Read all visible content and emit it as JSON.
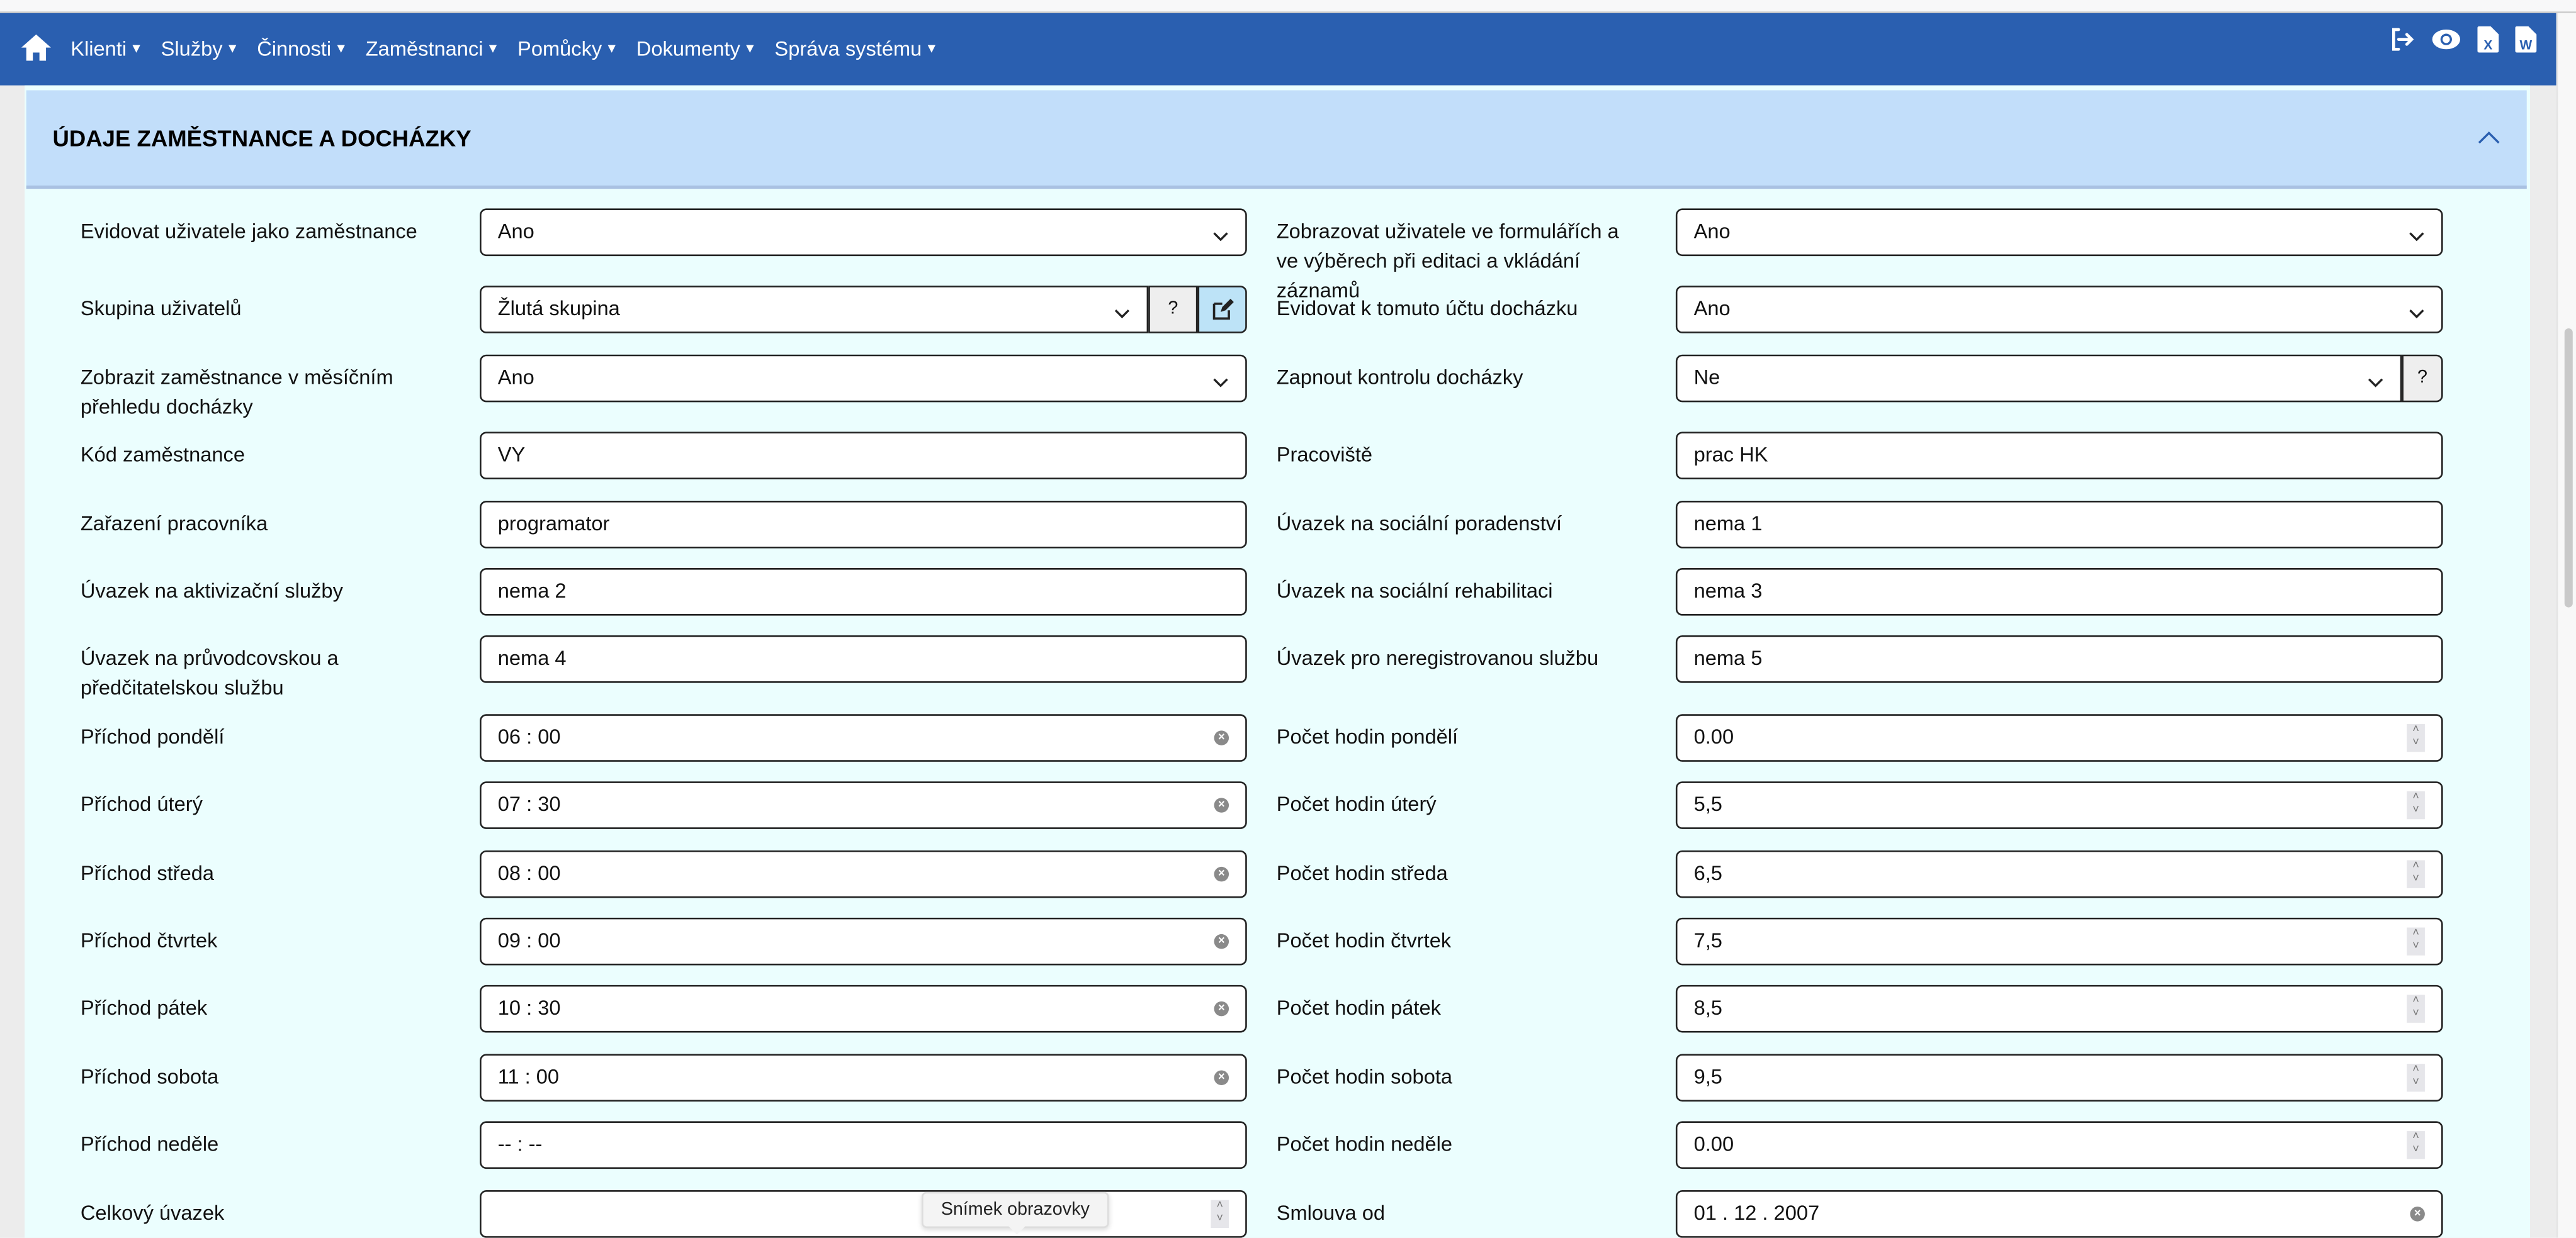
{
  "nav": {
    "items": [
      "Klienti",
      "Služby",
      "Činnosti",
      "Zaměstnanci",
      "Pomůcky",
      "Dokumenty",
      "Správa systému"
    ],
    "icons": [
      "home-icon",
      "logout-icon",
      "eye-icon",
      "excel-file-icon",
      "word-file-icon"
    ],
    "color": "#2a5fb0"
  },
  "section": {
    "title": "ÚDAJE ZAMĚSTNANCE A DOCHÁZKY",
    "header_color": "#c2defa",
    "body_color": "#ebfefe"
  },
  "rows": [
    {
      "left": {
        "label": "Evidovat uživatele jako zaměstnance",
        "type": "select",
        "value": "Ano"
      },
      "right": {
        "label": "Zobrazovat uživatele ve formulářích a ve výběrech při editaci a vkládání záznamů",
        "type": "select",
        "value": "Ano"
      }
    },
    {
      "left": {
        "label": "Skupina uživatelů",
        "type": "select",
        "value": "Žlutá skupina",
        "help": "?",
        "edit": true
      },
      "right": {
        "label": "Evidovat k tomuto účtu docházku",
        "type": "select",
        "value": "Ano"
      }
    },
    {
      "left": {
        "label": "Zobrazit zaměstnance v měsíčním přehledu docházky",
        "type": "select",
        "value": "Ano"
      },
      "right": {
        "label": "Zapnout kontrolu docházky",
        "type": "select",
        "value": "Ne",
        "help": "?"
      }
    },
    {
      "left": {
        "label": "Kód zaměstnance",
        "type": "text",
        "value": "VY"
      },
      "right": {
        "label": "Pracoviště",
        "type": "text",
        "value": "prac HK"
      }
    },
    {
      "left": {
        "label": "Zařazení pracovníka",
        "type": "text",
        "value": "programator"
      },
      "right": {
        "label": "Úvazek na sociální poradenství",
        "type": "text",
        "value": "nema 1"
      }
    },
    {
      "left": {
        "label": "Úvazek na aktivizační služby",
        "type": "text",
        "value": "nema 2"
      },
      "right": {
        "label": "Úvazek na sociální rehabilitaci",
        "type": "text",
        "value": "nema 3"
      }
    },
    {
      "left": {
        "label": "Úvazek na průvodcovskou a předčitatelskou službu",
        "type": "text",
        "value": "nema 4"
      },
      "right": {
        "label": "Úvazek pro neregistrovanou službu",
        "type": "text",
        "value": "nema 5"
      }
    },
    {
      "left": {
        "label": "Příchod pondělí",
        "type": "time",
        "value": "06 : 00"
      },
      "right": {
        "label": "Počet hodin pondělí",
        "type": "number",
        "value": "0.00"
      }
    },
    {
      "left": {
        "label": "Příchod úterý",
        "type": "time",
        "value": "07 : 30"
      },
      "right": {
        "label": "Počet hodin úterý",
        "type": "number",
        "value": "5,5"
      }
    },
    {
      "left": {
        "label": "Příchod středa",
        "type": "time",
        "value": "08 : 00"
      },
      "right": {
        "label": "Počet hodin středa",
        "type": "number",
        "value": "6,5"
      }
    },
    {
      "left": {
        "label": "Příchod čtvrtek",
        "type": "time",
        "value": "09 : 00"
      },
      "right": {
        "label": "Počet hodin čtvrtek",
        "type": "number",
        "value": "7,5"
      }
    },
    {
      "left": {
        "label": "Příchod pátek",
        "type": "time",
        "value": "10 : 30"
      },
      "right": {
        "label": "Počet hodin pátek",
        "type": "number",
        "value": "8,5"
      }
    },
    {
      "left": {
        "label": "Příchod sobota",
        "type": "time",
        "value": "11 : 00"
      },
      "right": {
        "label": "Počet hodin sobota",
        "type": "number",
        "value": "9,5"
      }
    },
    {
      "left": {
        "label": "Příchod neděle",
        "type": "text",
        "value": "-- : --"
      },
      "right": {
        "label": "Počet hodin neděle",
        "type": "number",
        "value": "0.00"
      }
    },
    {
      "left": {
        "label": "Celkový úvazek",
        "type": "number",
        "value": ""
      },
      "right": {
        "label": "Smlouva od",
        "type": "time",
        "value": "01 .  12 .  2007"
      }
    }
  ],
  "tooltip": "Snímek obrazovky"
}
